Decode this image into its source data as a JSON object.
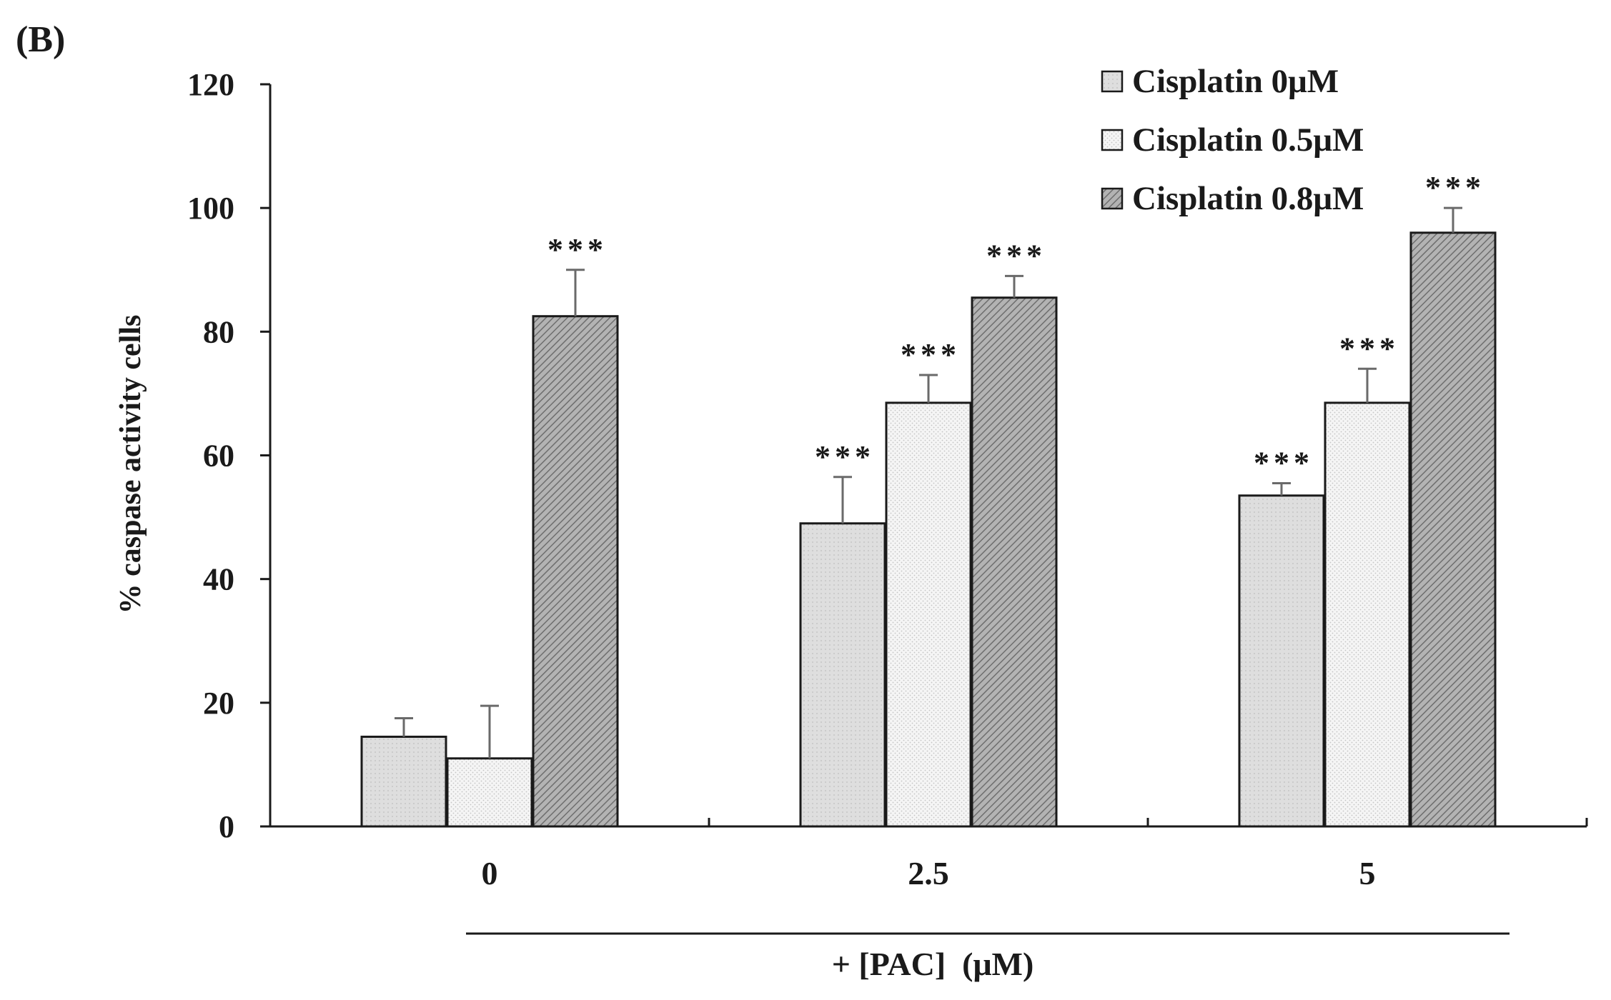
{
  "panel_label": "(B)",
  "colors": {
    "axis": "#1a1a1a",
    "series_0": "#dcdcdc",
    "series_1": "#f3f3f3",
    "series_2": "#a6a6a6",
    "error_bar": "#6a6a6a"
  },
  "chart_data": {
    "type": "bar",
    "categories": [
      "0",
      "2.5",
      "5"
    ],
    "xlabel": "+ [PAC]  (μM)",
    "ylabel": "% caspase activity cells",
    "ylim": [
      0,
      120
    ],
    "yticks": [
      "0",
      "20",
      "40",
      "60",
      "80",
      "100",
      "120"
    ],
    "ytick_values": [
      0,
      20,
      40,
      60,
      80,
      100,
      120
    ],
    "legend_position": "top-right",
    "grid": false,
    "series": [
      {
        "name": "Cisplatin 0μM",
        "values": [
          14.5,
          49,
          53.5
        ],
        "errors": [
          3,
          7.5,
          2
        ],
        "significance": [
          "",
          "***",
          "***"
        ],
        "pattern": "light-dots"
      },
      {
        "name": "Cisplatin 0.5μM",
        "values": [
          11,
          68.5,
          68.5
        ],
        "errors": [
          8.5,
          4.5,
          5.5
        ],
        "significance": [
          "",
          "***",
          "***"
        ],
        "pattern": "white-dots"
      },
      {
        "name": "Cisplatin 0.8μM",
        "values": [
          82.5,
          85.5,
          96
        ],
        "errors": [
          7.5,
          3.5,
          4
        ],
        "significance": [
          "***",
          "***",
          "***"
        ],
        "pattern": "diagonal-hatch"
      }
    ]
  }
}
